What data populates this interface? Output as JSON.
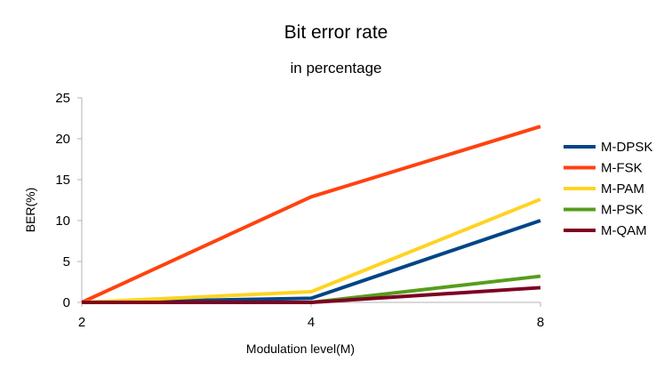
{
  "chart_data": {
    "type": "line",
    "title": "Bit error rate",
    "subtitle": "in percentage",
    "xlabel": "Modulation level(M)",
    "ylabel": "BER(%)",
    "x": [
      2,
      4,
      8
    ],
    "x_tick_labels": [
      "2",
      "4",
      "8"
    ],
    "ylim": [
      0,
      25
    ],
    "y_ticks": [
      0,
      5,
      10,
      15,
      20,
      25
    ],
    "grid": false,
    "legend_position": "right",
    "series": [
      {
        "name": "M-DPSK",
        "color": "#004586",
        "values": [
          0,
          0.5,
          10
        ]
      },
      {
        "name": "M-FSK",
        "color": "#ff420e",
        "values": [
          0,
          12.9,
          21.5
        ]
      },
      {
        "name": "M-PAM",
        "color": "#ffd320",
        "values": [
          0,
          1.3,
          12.6
        ]
      },
      {
        "name": "M-PSK",
        "color": "#579d1c",
        "values": [
          0,
          0,
          3.2
        ]
      },
      {
        "name": "M-QAM",
        "color": "#7e0021",
        "values": [
          0,
          0,
          1.8
        ]
      }
    ]
  }
}
